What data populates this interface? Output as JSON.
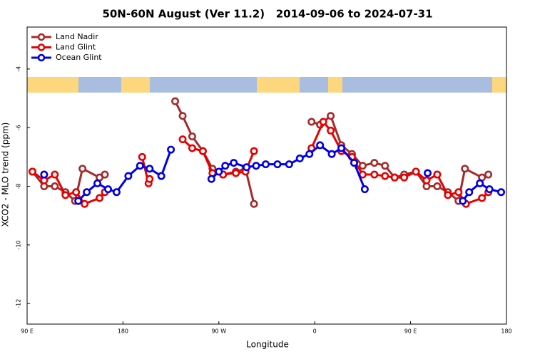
{
  "chart_data": {
    "type": "line",
    "title": "50N-60N August (Ver 11.2)   2014-09-06 to 2024-07-31",
    "x_label": "Longitude",
    "y_label": "XCO2 - MLO trend (ppm)",
    "xlim": [
      90,
      540
    ],
    "ylim": [
      -12.7,
      -2.57
    ],
    "xticks": [
      {
        "value": 90,
        "label": "90 E"
      },
      180,
      {
        "value": 270,
        "label": "90 W"
      },
      {
        "value": 360,
        "label": "0"
      },
      {
        "value": 450,
        "label": "90 E"
      },
      {
        "value": 540,
        "label": "180"
      }
    ],
    "yticks": [
      -12,
      -10,
      -8,
      -6,
      -4
    ],
    "legend": "upper-left",
    "series": [
      {
        "name": "Land Nadir",
        "color": "#a52a2a",
        "x": [
          95,
          106,
          116,
          126,
          135,
          142,
          158,
          163,
          null,
          229,
          236,
          245,
          255,
          264,
          274,
          286,
          295,
          303,
          null,
          357,
          365,
          375,
          385,
          395,
          405,
          416,
          426,
          435,
          444,
          455,
          465,
          475,
          485,
          495,
          501,
          517,
          523
        ],
        "values": [
          -7.5,
          -8.0,
          -8.0,
          -8.2,
          -8.5,
          -7.4,
          -7.7,
          -7.6,
          null,
          -5.1,
          -5.6,
          -6.3,
          -6.8,
          -7.4,
          -7.6,
          -7.5,
          -7.4,
          -8.6,
          null,
          -5.8,
          -5.9,
          -5.6,
          -6.6,
          -6.9,
          -7.3,
          -7.2,
          -7.3,
          -7.7,
          -7.6,
          -7.5,
          -8.0,
          -8.0,
          -8.2,
          -8.5,
          -7.4,
          -7.7,
          -7.6
        ]
      },
      {
        "name": "Land Glint",
        "color": "#e60000",
        "x": [
          95,
          106,
          116,
          126,
          136,
          144,
          158,
          163,
          null,
          198,
          204,
          205,
          null,
          236,
          245,
          255,
          264,
          274,
          286,
          295,
          303,
          null,
          357,
          368,
          375,
          385,
          395,
          405,
          416,
          426,
          435,
          444,
          455,
          465,
          475,
          485,
          495,
          502,
          517,
          523
        ],
        "values": [
          -7.5,
          -7.8,
          -7.6,
          -8.3,
          -8.2,
          -8.6,
          -8.4,
          -8.2,
          null,
          -7.0,
          -7.9,
          -7.75,
          null,
          -6.4,
          -6.7,
          -6.8,
          -7.55,
          -7.6,
          -7.55,
          -7.5,
          -6.8,
          null,
          -6.7,
          -5.8,
          -6.1,
          -6.8,
          -7.0,
          -7.6,
          -7.6,
          -7.65,
          -7.7,
          -7.7,
          -7.5,
          -7.8,
          -7.6,
          -8.3,
          -8.2,
          -8.6,
          -8.4,
          -8.2
        ]
      },
      {
        "name": "Ocean Glint",
        "color": "#0000e6",
        "x": [
          106,
          null,
          138,
          146,
          156,
          166,
          174,
          185,
          196,
          205,
          216,
          225,
          null,
          263,
          270,
          276,
          284,
          296,
          305,
          314,
          325,
          336,
          346,
          355,
          365,
          376,
          385,
          397,
          407,
          null,
          466,
          null,
          499,
          505,
          515,
          524,
          535
        ],
        "values": [
          -7.6,
          null,
          -8.5,
          -8.2,
          -7.9,
          -8.1,
          -8.2,
          -7.65,
          -7.3,
          -7.4,
          -7.65,
          -6.75,
          null,
          -7.75,
          -7.5,
          -7.3,
          -7.2,
          -7.35,
          -7.3,
          -7.25,
          -7.25,
          -7.25,
          -7.05,
          -6.9,
          -6.6,
          -6.9,
          -6.7,
          -7.2,
          -8.1,
          null,
          -7.55,
          null,
          -8.5,
          -8.2,
          -7.9,
          -8.1,
          -8.2
        ]
      }
    ]
  }
}
